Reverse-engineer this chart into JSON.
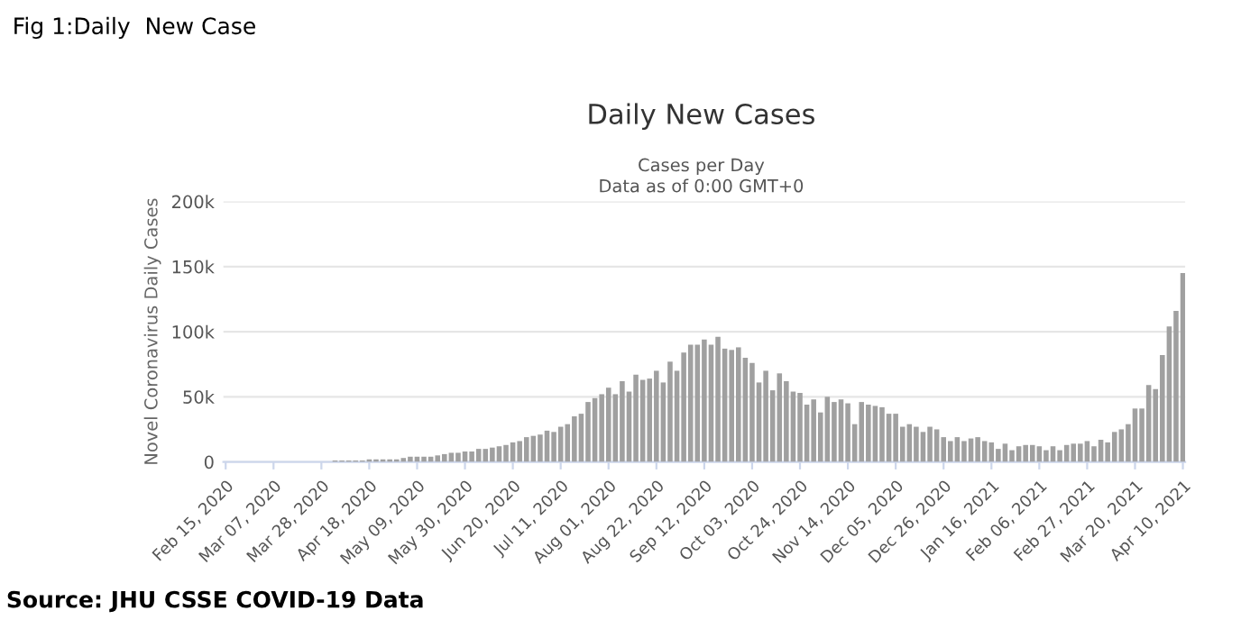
{
  "chart_data": {
    "type": "bar",
    "title": "Daily New Cases",
    "subtitle": "Cases per Day\nData as of 0:00 GMT+0",
    "ylabel": "Novel Coronavirus Daily Cases",
    "annotations": [
      "Fig 1:Daily  New Case",
      "Source: JHU CSSE COVID-19 Data"
    ],
    "x": [
      "2020-02-15",
      "2020-02-18",
      "2020-02-21",
      "2020-02-24",
      "2020-02-27",
      "2020-03-01",
      "2020-03-04",
      "2020-03-07",
      "2020-03-10",
      "2020-03-13",
      "2020-03-16",
      "2020-03-19",
      "2020-03-22",
      "2020-03-25",
      "2020-03-28",
      "2020-03-31",
      "2020-04-03",
      "2020-04-06",
      "2020-04-09",
      "2020-04-12",
      "2020-04-15",
      "2020-04-18",
      "2020-04-21",
      "2020-04-24",
      "2020-04-27",
      "2020-04-30",
      "2020-05-03",
      "2020-05-06",
      "2020-05-09",
      "2020-05-12",
      "2020-05-15",
      "2020-05-18",
      "2020-05-21",
      "2020-05-24",
      "2020-05-27",
      "2020-05-30",
      "2020-06-02",
      "2020-06-05",
      "2020-06-08",
      "2020-06-11",
      "2020-06-14",
      "2020-06-17",
      "2020-06-20",
      "2020-06-23",
      "2020-06-26",
      "2020-06-29",
      "2020-07-02",
      "2020-07-05",
      "2020-07-08",
      "2020-07-11",
      "2020-07-14",
      "2020-07-17",
      "2020-07-20",
      "2020-07-23",
      "2020-07-26",
      "2020-07-29",
      "2020-08-01",
      "2020-08-04",
      "2020-08-07",
      "2020-08-10",
      "2020-08-13",
      "2020-08-16",
      "2020-08-19",
      "2020-08-22",
      "2020-08-25",
      "2020-08-28",
      "2020-08-31",
      "2020-09-03",
      "2020-09-06",
      "2020-09-09",
      "2020-09-12",
      "2020-09-15",
      "2020-09-18",
      "2020-09-21",
      "2020-09-24",
      "2020-09-27",
      "2020-09-30",
      "2020-10-03",
      "2020-10-06",
      "2020-10-09",
      "2020-10-12",
      "2020-10-15",
      "2020-10-18",
      "2020-10-21",
      "2020-10-24",
      "2020-10-27",
      "2020-10-30",
      "2020-11-02",
      "2020-11-05",
      "2020-11-08",
      "2020-11-11",
      "2020-11-14",
      "2020-11-17",
      "2020-11-20",
      "2020-11-23",
      "2020-11-26",
      "2020-11-29",
      "2020-12-02",
      "2020-12-05",
      "2020-12-08",
      "2020-12-11",
      "2020-12-14",
      "2020-12-17",
      "2020-12-20",
      "2020-12-23",
      "2020-12-26",
      "2020-12-29",
      "2021-01-01",
      "2021-01-04",
      "2021-01-07",
      "2021-01-10",
      "2021-01-13",
      "2021-01-16",
      "2021-01-19",
      "2021-01-22",
      "2021-01-25",
      "2021-01-28",
      "2021-01-31",
      "2021-02-03",
      "2021-02-06",
      "2021-02-09",
      "2021-02-12",
      "2021-02-15",
      "2021-02-18",
      "2021-02-21",
      "2021-02-24",
      "2021-02-27",
      "2021-03-02",
      "2021-03-05",
      "2021-03-08",
      "2021-03-11",
      "2021-03-14",
      "2021-03-17",
      "2021-03-20",
      "2021-03-23",
      "2021-03-26",
      "2021-03-29",
      "2021-04-01",
      "2021-04-04",
      "2021-04-07",
      "2021-04-10"
    ],
    "series": [
      {
        "color": "#a0a0a0",
        "values": [
          0,
          0,
          0,
          0,
          0,
          0,
          0,
          0,
          0,
          0,
          0,
          0,
          0,
          0,
          0,
          0,
          1000,
          1000,
          1000,
          1000,
          1000,
          2000,
          2000,
          2000,
          2000,
          2000,
          3000,
          4000,
          4000,
          4000,
          4000,
          5000,
          6000,
          7000,
          7000,
          8000,
          8000,
          10000,
          10000,
          11000,
          12000,
          13000,
          15000,
          16000,
          19000,
          20000,
          21000,
          24000,
          23000,
          27000,
          29000,
          35000,
          37000,
          46000,
          49000,
          52000,
          57000,
          52000,
          62000,
          54000,
          67000,
          63000,
          64000,
          70000,
          61000,
          77000,
          70000,
          84000,
          90000,
          90000,
          94000,
          90000,
          96000,
          87000,
          86000,
          88000,
          80000,
          76000,
          61000,
          70000,
          55000,
          68000,
          62000,
          54000,
          53000,
          44000,
          48000,
          38000,
          50000,
          46000,
          48000,
          45000,
          29000,
          46000,
          44000,
          43000,
          42000,
          37000,
          37000,
          27000,
          29000,
          27000,
          23000,
          27000,
          25000,
          19000,
          16000,
          19000,
          16000,
          18000,
          19000,
          16000,
          15000,
          10000,
          14000,
          9000,
          12000,
          13000,
          13000,
          12000,
          9000,
          12000,
          9000,
          13000,
          14000,
          14000,
          16000,
          12000,
          17000,
          15000,
          23000,
          25000,
          29000,
          41000,
          41000,
          59000,
          56000,
          82000,
          104000,
          116000,
          145000
        ]
      }
    ],
    "xlim": [
      "2020-02-14",
      "2021-04-11"
    ],
    "xticks": [
      {
        "value": "2020-02-15",
        "label": "Feb 15, 2020"
      },
      {
        "value": "2020-03-07",
        "label": "Mar 07, 2020"
      },
      {
        "value": "2020-03-28",
        "label": "Mar 28, 2020"
      },
      {
        "value": "2020-04-18",
        "label": "Apr 18, 2020"
      },
      {
        "value": "2020-05-09",
        "label": "May 09, 2020"
      },
      {
        "value": "2020-05-30",
        "label": "May 30, 2020"
      },
      {
        "value": "2020-06-20",
        "label": "Jun 20, 2020"
      },
      {
        "value": "2020-07-11",
        "label": "Jul 11, 2020"
      },
      {
        "value": "2020-08-01",
        "label": "Aug 01, 2020"
      },
      {
        "value": "2020-08-22",
        "label": "Aug 22, 2020"
      },
      {
        "value": "2020-09-12",
        "label": "Sep 12, 2020"
      },
      {
        "value": "2020-10-03",
        "label": "Oct 03, 2020"
      },
      {
        "value": "2020-10-24",
        "label": "Oct 24, 2020"
      },
      {
        "value": "2020-11-14",
        "label": "Nov 14, 2020"
      },
      {
        "value": "2020-12-05",
        "label": "Dec 05, 2020"
      },
      {
        "value": "2020-12-26",
        "label": "Dec 26, 2020"
      },
      {
        "value": "2021-01-16",
        "label": "Jan 16, 2021"
      },
      {
        "value": "2021-02-06",
        "label": "Feb 06, 2021"
      },
      {
        "value": "2021-02-27",
        "label": "Feb 27, 2021"
      },
      {
        "value": "2021-03-20",
        "label": "Mar 20, 2021"
      },
      {
        "value": "2021-04-10",
        "label": "Apr 10, 2021"
      }
    ],
    "ylim": [
      0,
      200000
    ],
    "yticks": [
      {
        "value": 0,
        "label": "0"
      },
      {
        "value": 50000,
        "label": "50k"
      },
      {
        "value": 100000,
        "label": "100k"
      },
      {
        "value": 150000,
        "label": "150k"
      },
      {
        "value": 200000,
        "label": "200k"
      }
    ],
    "grid": "y",
    "legend": false
  }
}
